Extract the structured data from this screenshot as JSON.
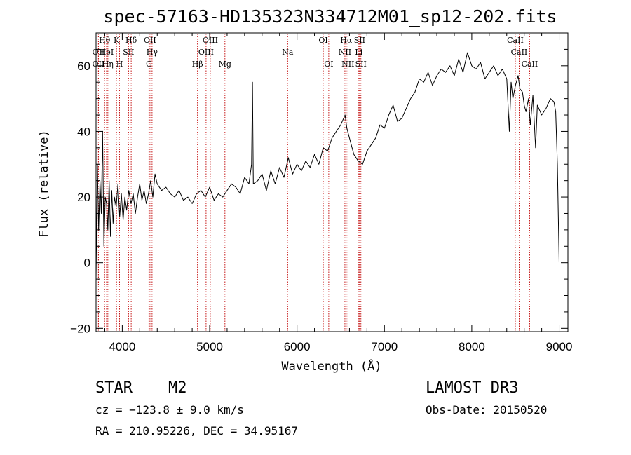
{
  "chart_data": {
    "type": "line",
    "title": "spec-57163-HD135323N334712M01_sp12-202.fits",
    "xlabel": "Wavelength (Å)",
    "ylabel": "Flux (relative)",
    "xlim": [
      3700,
      9100
    ],
    "ylim": [
      -21,
      70
    ],
    "x_ticks": [
      4000,
      5000,
      6000,
      7000,
      8000,
      9000
    ],
    "y_ticks": [
      -20,
      0,
      20,
      40,
      60
    ],
    "grid": false,
    "series": [
      {
        "x": [
          3700,
          3715,
          3730,
          3745,
          3760,
          3775,
          3790,
          3805,
          3820,
          3835,
          3850,
          3865,
          3880,
          3895,
          3910,
          3930,
          3950,
          3970,
          3990,
          4010,
          4030,
          4050,
          4075,
          4100,
          4125,
          4150,
          4175,
          4200,
          4225,
          4250,
          4275,
          4300,
          4325,
          4350,
          4375,
          4400,
          4450,
          4500,
          4550,
          4600,
          4650,
          4700,
          4750,
          4800,
          4850,
          4900,
          4950,
          5000,
          5050,
          5100,
          5150,
          5200,
          5250,
          5300,
          5350,
          5400,
          5450,
          5480,
          5490,
          5500,
          5550,
          5600,
          5650,
          5700,
          5750,
          5800,
          5850,
          5900,
          5950,
          6000,
          6050,
          6100,
          6150,
          6200,
          6250,
          6300,
          6350,
          6400,
          6450,
          6500,
          6550,
          6570,
          6600,
          6650,
          6700,
          6750,
          6800,
          6850,
          6900,
          6950,
          7000,
          7050,
          7100,
          7150,
          7200,
          7250,
          7300,
          7350,
          7400,
          7450,
          7500,
          7550,
          7600,
          7650,
          7700,
          7750,
          7800,
          7850,
          7900,
          7950,
          8000,
          8050,
          8100,
          8150,
          8200,
          8250,
          8300,
          8350,
          8400,
          8430,
          8450,
          8470,
          8500,
          8530,
          8550,
          8580,
          8600,
          8620,
          8650,
          8670,
          8700,
          8730,
          8750,
          8800,
          8850,
          8900,
          8940,
          8960,
          8980,
          9000
        ],
        "values": [
          -5,
          30,
          10,
          25,
          15,
          40,
          5,
          20,
          18,
          10,
          25,
          8,
          22,
          12,
          20,
          17,
          24,
          14,
          21,
          13,
          20,
          16,
          22,
          18,
          21,
          15,
          20,
          24,
          19,
          22,
          18,
          21,
          25,
          20,
          27,
          24,
          22,
          23,
          21,
          20,
          22,
          19,
          20,
          18,
          21,
          22,
          20,
          23,
          19,
          21,
          20,
          22,
          24,
          23,
          21,
          26,
          24,
          30,
          55,
          24,
          25,
          27,
          22,
          28,
          24,
          29,
          26,
          32,
          27,
          30,
          28,
          31,
          29,
          33,
          30,
          35,
          34,
          38,
          40,
          42,
          45,
          41,
          38,
          33,
          31,
          30,
          34,
          36,
          38,
          42,
          41,
          45,
          48,
          43,
          44,
          47,
          50,
          52,
          56,
          55,
          58,
          54,
          57,
          59,
          58,
          60,
          57,
          62,
          58,
          64,
          60,
          59,
          61,
          56,
          58,
          60,
          57,
          59,
          56,
          40,
          55,
          50,
          54,
          57,
          53,
          52,
          48,
          46,
          50,
          42,
          51,
          35,
          48,
          45,
          47,
          50,
          49,
          46,
          30,
          0
        ]
      }
    ],
    "spectral_lines": [
      {
        "name": "OII",
        "x": 3727,
        "row": 2
      },
      {
        "name": "OII",
        "x": 3727,
        "row": 1
      },
      {
        "name": "Hθ",
        "x": 3798,
        "row": 0
      },
      {
        "name": "HeI",
        "x": 3820,
        "row": 1
      },
      {
        "name": "Hη",
        "x": 3835,
        "row": 2
      },
      {
        "name": "K",
        "x": 3934,
        "row": 0
      },
      {
        "name": "H",
        "x": 3969,
        "row": 2
      },
      {
        "name": "SII",
        "x": 4072,
        "row": 1
      },
      {
        "name": "Hδ",
        "x": 4102,
        "row": 0
      },
      {
        "name": "OII",
        "x": 4317,
        "row": 0
      },
      {
        "name": "Hγ",
        "x": 4341,
        "row": 1
      },
      {
        "name": "G",
        "x": 4305,
        "row": 2
      },
      {
        "name": "Hβ",
        "x": 4861,
        "row": 2
      },
      {
        "name": "OIII",
        "x": 5007,
        "row": 0
      },
      {
        "name": "OIII",
        "x": 4959,
        "row": 1
      },
      {
        "name": "Mg",
        "x": 5175,
        "row": 2
      },
      {
        "name": "Na",
        "x": 5893,
        "row": 1
      },
      {
        "name": "OI",
        "x": 6300,
        "row": 0
      },
      {
        "name": "OI",
        "x": 6363,
        "row": 2
      },
      {
        "name": "Hα",
        "x": 6563,
        "row": 0
      },
      {
        "name": "NII",
        "x": 6548,
        "row": 1
      },
      {
        "name": "NII",
        "x": 6583,
        "row": 2
      },
      {
        "name": "SII",
        "x": 6716,
        "row": 0
      },
      {
        "name": "Li",
        "x": 6707,
        "row": 1
      },
      {
        "name": "SII",
        "x": 6731,
        "row": 2
      },
      {
        "name": "CaII",
        "x": 8498,
        "row": 0
      },
      {
        "name": "CaII",
        "x": 8542,
        "row": 1
      },
      {
        "name": "CaII",
        "x": 8662,
        "row": 2
      }
    ]
  },
  "info": {
    "object_class": "STAR",
    "subclass": "M2",
    "survey": "LAMOST DR3",
    "cz": "cz = −123.8 ± 9.0 km/s",
    "obs_date": "Obs-Date: 20150520",
    "coords": "RA = 210.95226, DEC =  34.95167"
  },
  "colors": {
    "line_marker": "#c00000",
    "spectrum": "#000000"
  }
}
